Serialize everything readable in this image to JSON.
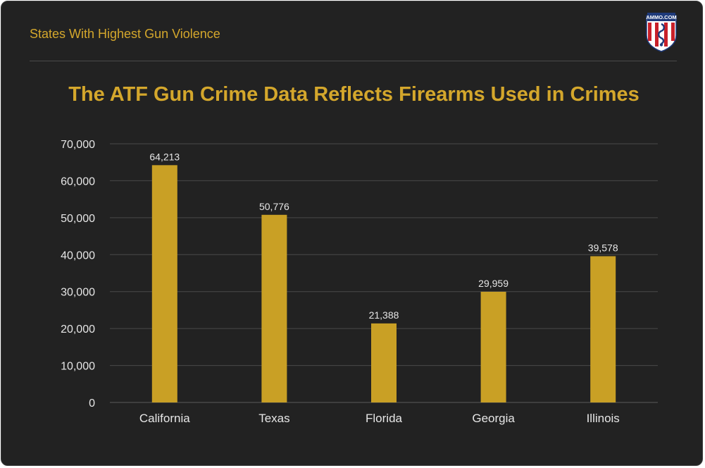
{
  "header": {
    "title": "States With Highest Gun Violence",
    "logo_text": "AMMO.COM"
  },
  "colors": {
    "background": "#222222",
    "accent": "#d4a72c",
    "bar": "#c9a025",
    "grid": "#4a4a4a",
    "text": "#e6e6e6"
  },
  "chart_data": {
    "type": "bar",
    "title": "The ATF Gun Crime Data Reflects Firearms Used in Crimes",
    "categories": [
      "California",
      "Texas",
      "Florida",
      "Georgia",
      "Illinois"
    ],
    "values": [
      64213,
      50776,
      21388,
      29959,
      39578
    ],
    "data_labels": [
      "64,213",
      "50,776",
      "21,388",
      "29,959",
      "39,578"
    ],
    "yticks": [
      0,
      10000,
      20000,
      30000,
      40000,
      50000,
      60000,
      70000
    ],
    "ytick_labels": [
      "0",
      "10,000",
      "20,000",
      "30,000",
      "40,000",
      "50,000",
      "60,000",
      "70,000"
    ],
    "ylim": [
      0,
      70000
    ],
    "xlabel": "",
    "ylabel": "",
    "grid": true,
    "legend": "none"
  }
}
